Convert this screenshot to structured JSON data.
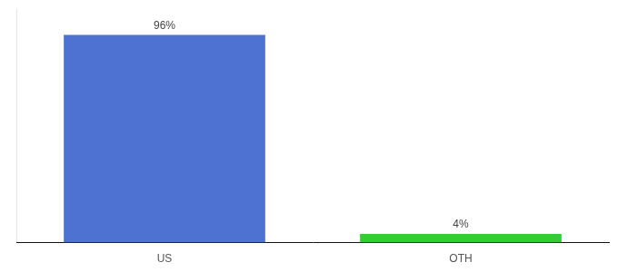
{
  "chart_data": {
    "type": "bar",
    "categories": [
      "US",
      "OTH"
    ],
    "values": [
      96,
      4
    ],
    "value_labels": [
      "96%",
      "4%"
    ],
    "colors": [
      "#4d72d1",
      "#33cc33"
    ],
    "ylim": [
      0,
      108
    ],
    "data_labels": true,
    "tick_labels": "x",
    "grid": false
  }
}
